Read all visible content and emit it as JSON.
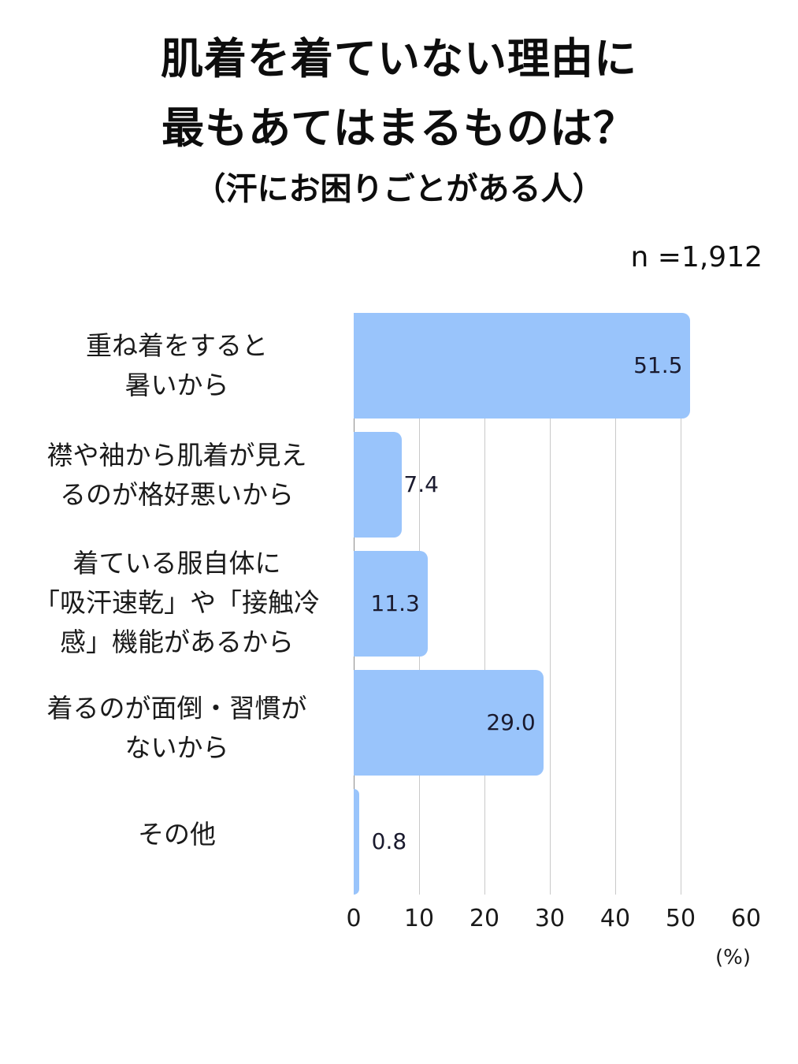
{
  "header": {
    "title_line1": "肌着を着ていない理由に",
    "title_line2": "最もあてはまるものは？",
    "subtitle": "（汗にお困りごとがある人）",
    "sample_size": "n =1,912"
  },
  "axis": {
    "ticks": [
      "0",
      "10",
      "20",
      "30",
      "40",
      "50",
      "60"
    ],
    "unit": "(%)"
  },
  "bars": [
    {
      "label": "重ね着をすると\n暑いから",
      "value": 51.5,
      "value_text": "51.5"
    },
    {
      "label": "襟や袖から肌着が見え\nるのが格好悪いから",
      "value": 7.4,
      "value_text": "7.4"
    },
    {
      "label": "着ている服自体に\n「吸汗速乾」や「接触冷\n感」機能があるから",
      "value": 11.3,
      "value_text": "11.3"
    },
    {
      "label": "着るのが面倒・習慣が\nないから",
      "value": 29.0,
      "value_text": "29.0"
    },
    {
      "label": "その他",
      "value": 0.8,
      "value_text": "0.8"
    }
  ],
  "colors": {
    "bar": "#99c4fb",
    "gridline": "#c9c9c9",
    "text": "#111111"
  },
  "chart_data": {
    "type": "bar",
    "orientation": "horizontal",
    "title": "肌着を着ていない理由に最もあてはまるものは？（汗にお困りごとがある人）",
    "subtitle": "n =1,912",
    "categories": [
      "重ね着をすると暑いから",
      "襟や袖から肌着が見えるのが格好悪いから",
      "着ている服自体に「吸汗速乾」や「接触冷感」機能があるから",
      "着るのが面倒・習慣がないから",
      "その他"
    ],
    "values": [
      51.5,
      7.4,
      11.3,
      29.0,
      0.8
    ],
    "xlabel": "(%)",
    "ylabel": "",
    "xlim": [
      0,
      60
    ],
    "xticks": [
      0,
      10,
      20,
      30,
      40,
      50,
      60
    ],
    "grid": true,
    "data_labels": true,
    "legend": "none"
  }
}
